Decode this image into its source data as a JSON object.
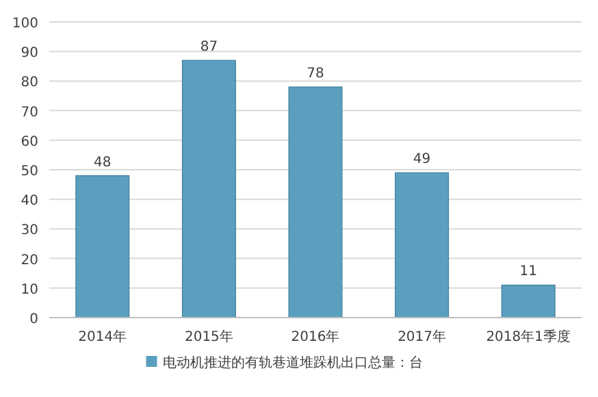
{
  "chart_data": {
    "type": "bar",
    "categories": [
      "2014年",
      "2015年",
      "2016年",
      "2017年",
      "2018年1季度"
    ],
    "series": [
      {
        "name": "电动机推进的有轨巷道堆跺机出口总量：台",
        "color": "#5b9fc0",
        "values": [
          48,
          87,
          78,
          49,
          11
        ]
      }
    ],
    "ylim": [
      0,
      100
    ],
    "yticks": [
      0,
      10,
      20,
      30,
      40,
      50,
      60,
      70,
      80,
      90,
      100
    ],
    "grid": "y",
    "data_labels": true,
    "legend": "bottom"
  }
}
